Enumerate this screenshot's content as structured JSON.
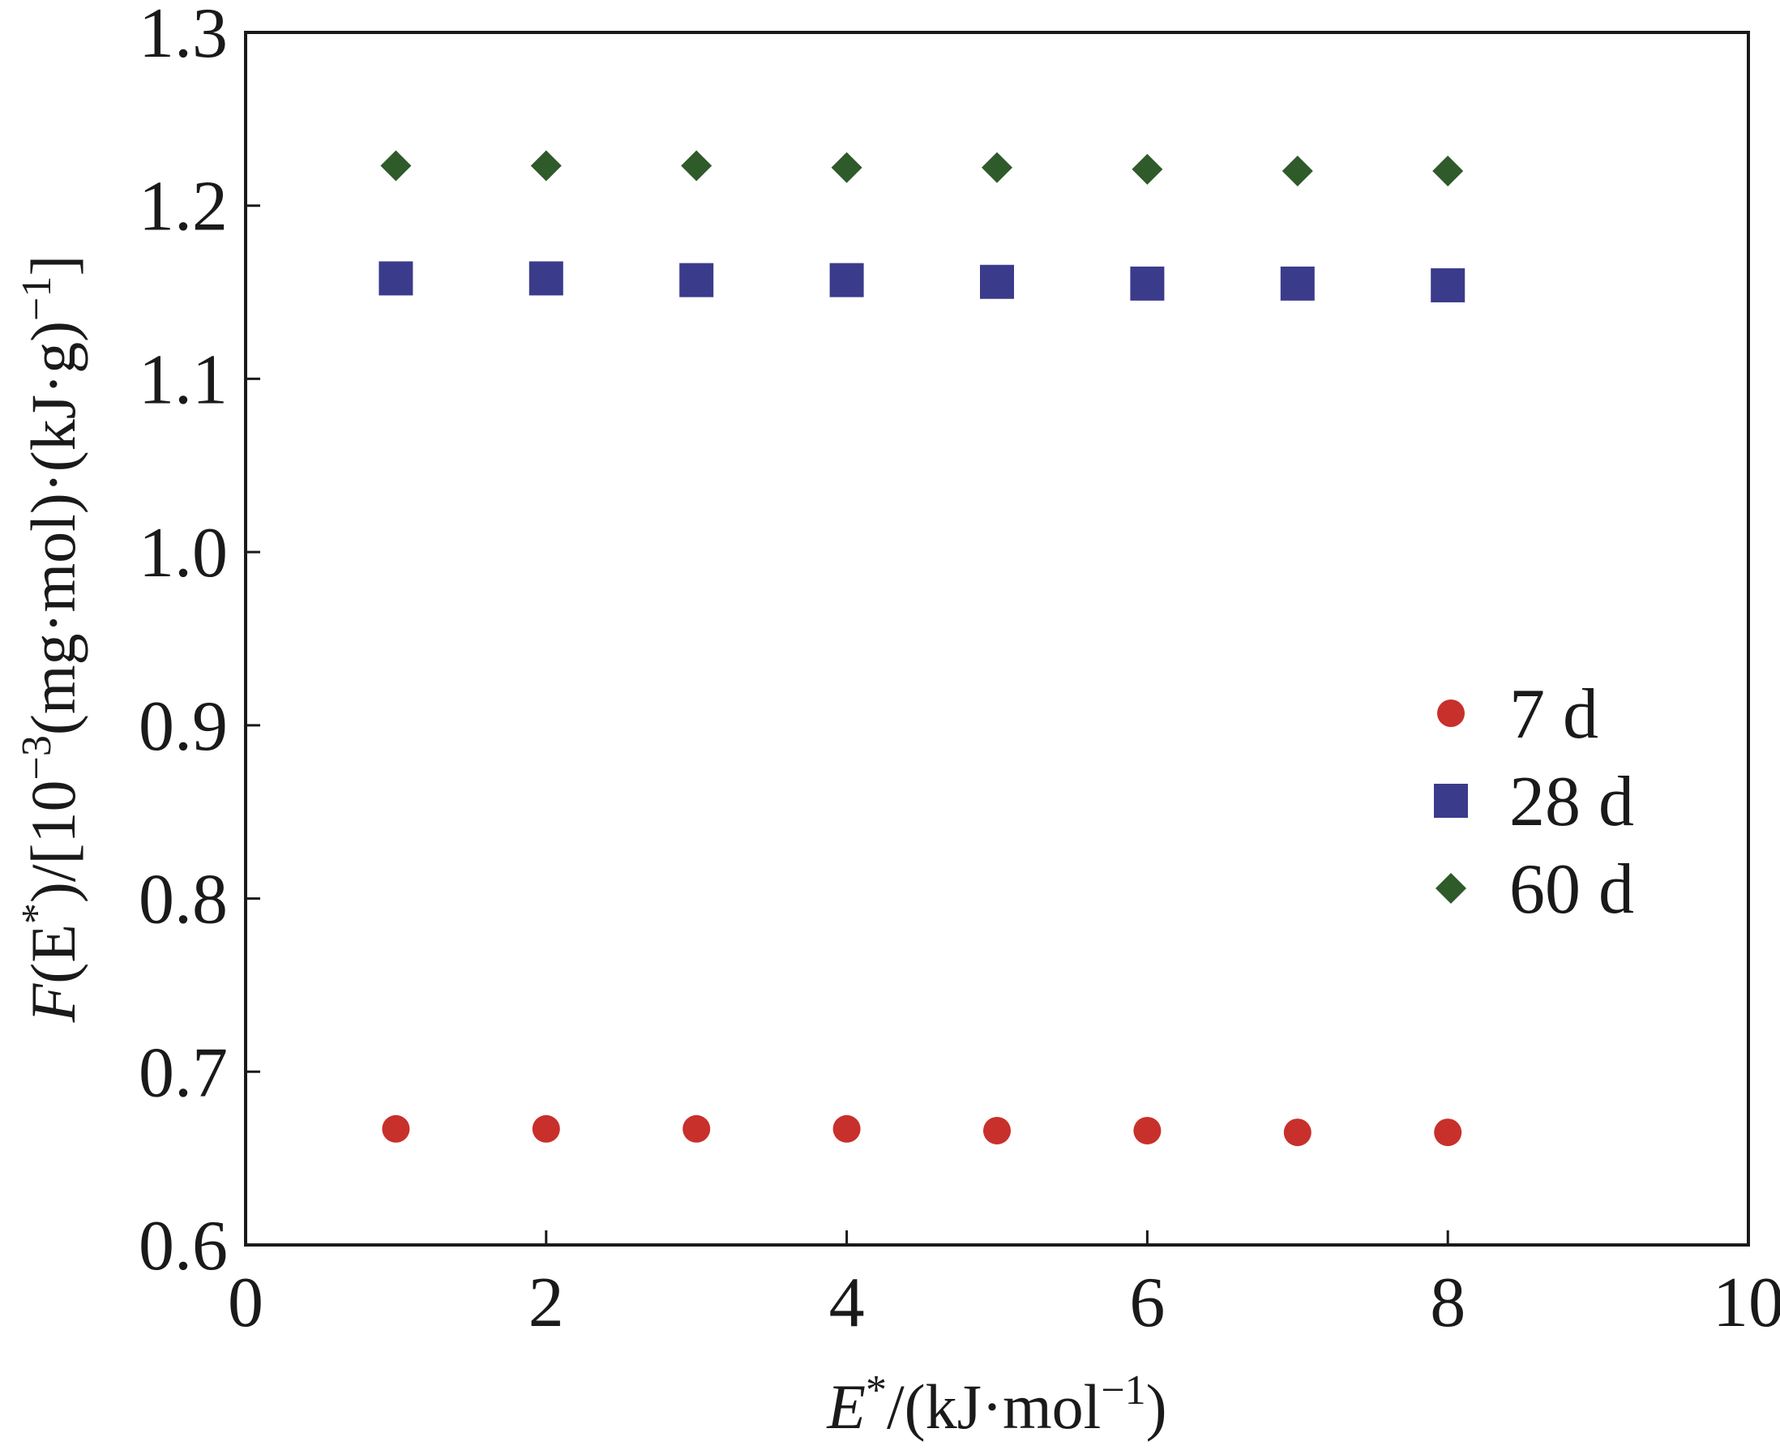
{
  "chart_data": {
    "type": "scatter",
    "title": "",
    "xlabel": {
      "main": "E",
      "sup1": "*",
      "mid": "/(kJ·mol",
      "sup2": "−1",
      "end": ")"
    },
    "ylabel": {
      "main": "F",
      "a": "(E",
      "sup1": "*",
      "b": ")/[10",
      "sup2": "−3",
      "c": "(mg·mol)·(kJ·g)",
      "sup3": "−1",
      "d": "]"
    },
    "xlim": [
      0,
      10
    ],
    "ylim": [
      0.6,
      1.3
    ],
    "xticks": [
      0,
      2,
      4,
      6,
      8,
      10
    ],
    "xtick_labels": [
      "0",
      "2",
      "4",
      "6",
      "8",
      "10"
    ],
    "yticks": [
      0.6,
      0.7,
      0.8,
      0.9,
      1.0,
      1.1,
      1.2,
      1.3
    ],
    "ytick_labels": [
      "0.6",
      "0.7",
      "0.8",
      "0.9",
      "1.0",
      "1.1",
      "1.2",
      "1.3"
    ],
    "grid": false,
    "legend_position": "right-middle",
    "x": [
      1,
      2,
      3,
      4,
      5,
      6,
      7,
      8
    ],
    "series": [
      {
        "name": "7 d",
        "marker": "circle",
        "color": "#c8302c",
        "values": [
          0.667,
          0.667,
          0.667,
          0.667,
          0.666,
          0.666,
          0.665,
          0.665
        ]
      },
      {
        "name": "28 d",
        "marker": "square",
        "color": "#3b3b8c",
        "values": [
          1.158,
          1.158,
          1.157,
          1.157,
          1.156,
          1.155,
          1.155,
          1.154
        ]
      },
      {
        "name": "60 d",
        "marker": "diamond",
        "color": "#2f5a2a",
        "values": [
          1.223,
          1.223,
          1.223,
          1.222,
          1.222,
          1.221,
          1.22,
          1.22
        ]
      }
    ]
  }
}
